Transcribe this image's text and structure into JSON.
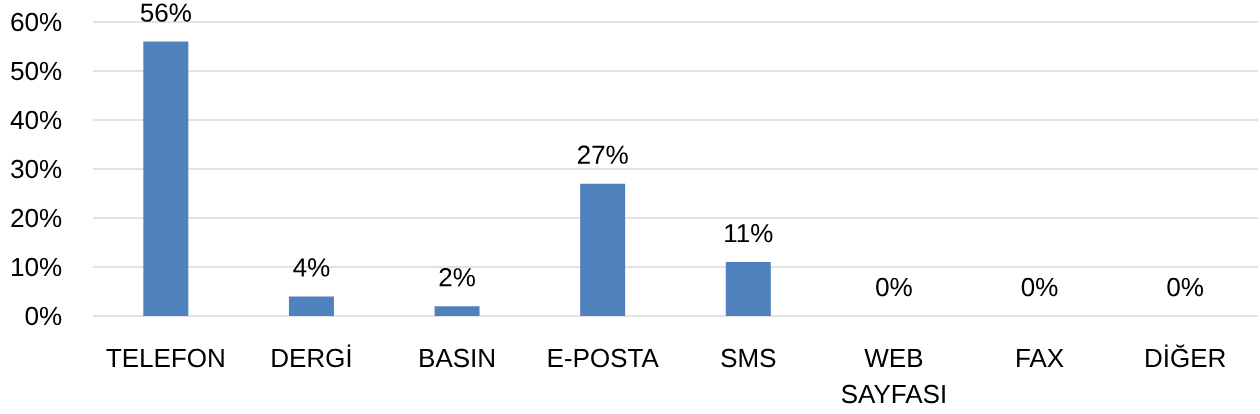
{
  "chart_data": {
    "type": "bar",
    "categories": [
      "TELEFON",
      "DERGİ",
      "BASIN",
      "E-POSTA",
      "SMS",
      "WEB SAYFASI",
      "FAX",
      "DİĞER"
    ],
    "values": [
      56,
      4,
      2,
      27,
      11,
      0,
      0,
      0
    ],
    "value_labels": [
      "56%",
      "4%",
      "2%",
      "27%",
      "11%",
      "0%",
      "0%",
      "0%"
    ],
    "color": "#4f81bd",
    "ylim": [
      0,
      60
    ],
    "yticks": [
      {
        "value": 0,
        "label": "0%"
      },
      {
        "value": 10,
        "label": "10%"
      },
      {
        "value": 20,
        "label": "20%"
      },
      {
        "value": 30,
        "label": "30%"
      },
      {
        "value": 40,
        "label": "40%"
      },
      {
        "value": 50,
        "label": "50%"
      },
      {
        "value": 60,
        "label": "60%"
      }
    ],
    "grid": "y"
  }
}
